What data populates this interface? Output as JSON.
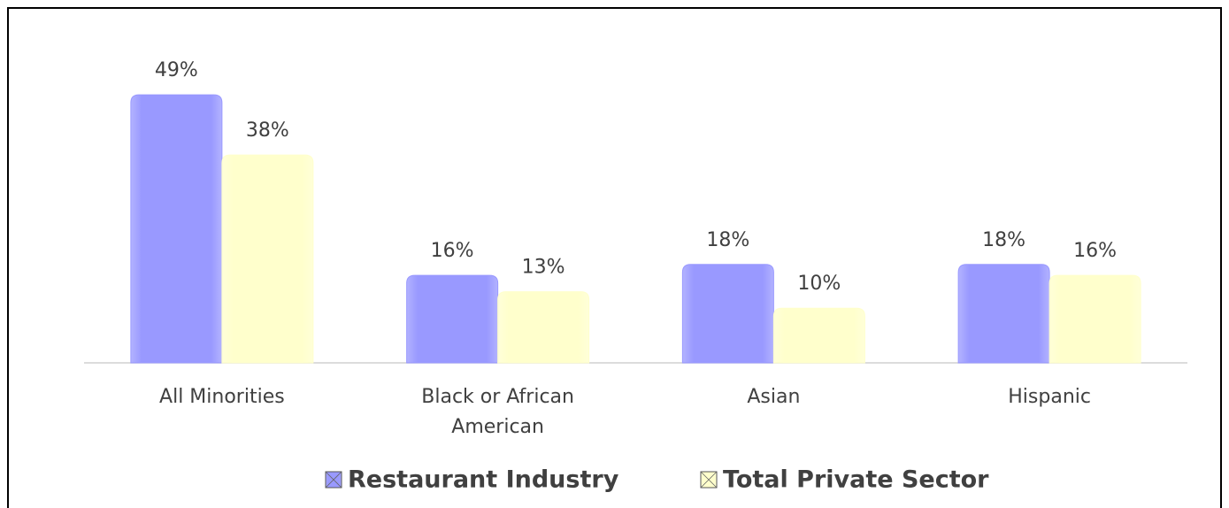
{
  "chart_data": {
    "type": "bar",
    "categories": [
      "All Minorities",
      "Black or African American",
      "Asian",
      "Hispanic"
    ],
    "series": [
      {
        "name": "Restaurant Industry",
        "color": "#9999ff",
        "values": [
          49,
          16,
          18,
          18
        ],
        "value_labels": [
          "49%",
          "16%",
          "18%",
          "18%"
        ]
      },
      {
        "name": "Total Private Sector",
        "color": "#ffffcc",
        "values": [
          38,
          13,
          10,
          16
        ],
        "value_labels": [
          "38%",
          "13%",
          "10%",
          "16%"
        ]
      }
    ],
    "legend": "bottom"
  }
}
